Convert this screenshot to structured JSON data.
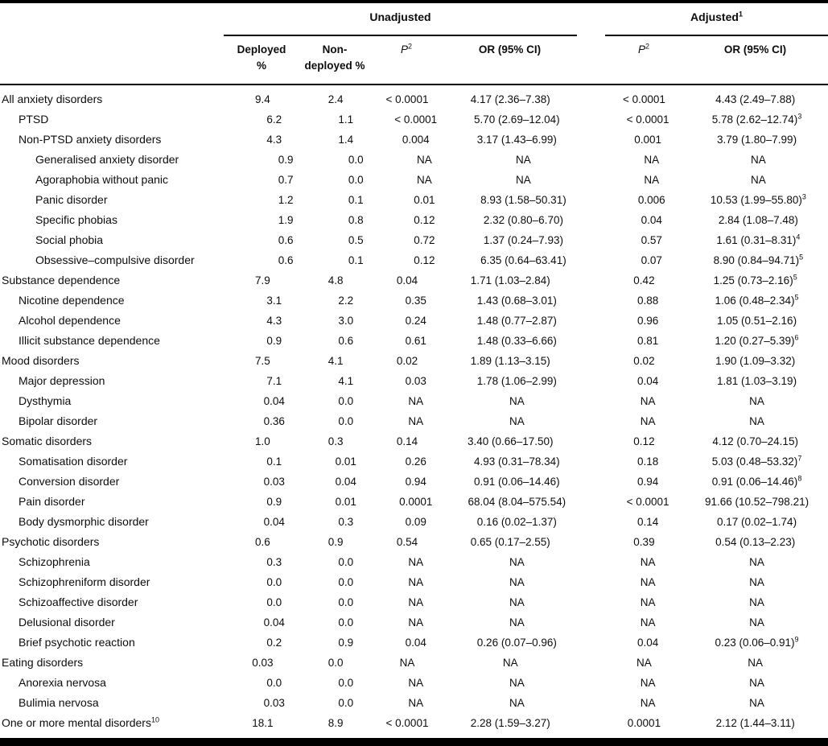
{
  "table": {
    "col_groups": {
      "unadjusted": "Unadjusted",
      "adjusted": "Adjusted",
      "adjusted_sup": "1"
    },
    "columns": {
      "deployed_line1": "Deployed",
      "deployed_line2": "%",
      "nondeployed_line1": "Non-",
      "nondeployed_line2": "deployed %",
      "p_label": "P",
      "p_sup": "2",
      "or_unadjusted_label": "OR (95% CI)",
      "or_adjusted_label": "OR (95% CI)"
    },
    "rows": [
      {
        "label": "All anxiety disorders",
        "indent": 0,
        "deployed": "9.4",
        "nondeployed": "2.4",
        "p_unadj": "< 0.0001",
        "or_unadj": "4.17 (2.36–7.38)",
        "p_adj": "< 0.0001",
        "or_adj": "4.43 (2.49–7.88)"
      },
      {
        "label": "PTSD",
        "indent": 1,
        "deployed": "6.2",
        "nondeployed": "1.1",
        "p_unadj": "< 0.0001",
        "or_unadj": "5.70 (2.69–12.04)",
        "p_adj": "< 0.0001",
        "or_adj": "5.78 (2.62–12.74)",
        "or_adj_sup": "3"
      },
      {
        "label": "Non-PTSD anxiety disorders",
        "indent": 1,
        "deployed": "4.3",
        "nondeployed": "1.4",
        "p_unadj": "0.004",
        "or_unadj": "3.17 (1.43–6.99)",
        "p_adj": "0.001",
        "or_adj": "3.79 (1.80–7.99)"
      },
      {
        "label": "Generalised anxiety disorder",
        "indent": 2,
        "deployed": "0.9",
        "nondeployed": "0.0",
        "p_unadj": "NA",
        "or_unadj": "NA",
        "p_adj": "NA",
        "or_adj": "NA"
      },
      {
        "label": "Agoraphobia without panic",
        "indent": 2,
        "deployed": "0.7",
        "nondeployed": "0.0",
        "p_unadj": "NA",
        "or_unadj": "NA",
        "p_adj": "NA",
        "or_adj": "NA"
      },
      {
        "label": "Panic disorder",
        "indent": 2,
        "deployed": "1.2",
        "nondeployed": "0.1",
        "p_unadj": "0.01",
        "or_unadj": "8.93 (1.58–50.31)",
        "p_adj": "0.006",
        "or_adj": "10.53 (1.99–55.80)",
        "or_adj_sup": "3"
      },
      {
        "label": "Specific phobias",
        "indent": 2,
        "deployed": "1.9",
        "nondeployed": "0.8",
        "p_unadj": "0.12",
        "or_unadj": "2.32 (0.80–6.70)",
        "p_adj": "0.04",
        "or_adj": "2.84 (1.08–7.48)"
      },
      {
        "label": "Social phobia",
        "indent": 2,
        "deployed": "0.6",
        "nondeployed": "0.5",
        "p_unadj": "0.72",
        "or_unadj": "1.37 (0.24–7.93)",
        "p_adj": "0.57",
        "or_adj": "1.61 (0.31–8.31)",
        "or_adj_sup": "4"
      },
      {
        "label": "Obsessive–compulsive disorder",
        "indent": 2,
        "deployed": "0.6",
        "nondeployed": "0.1",
        "p_unadj": "0.12",
        "or_unadj": "6.35 (0.64–63.41)",
        "p_adj": "0.07",
        "or_adj": "8.90 (0.84–94.71)",
        "or_adj_sup": "5"
      },
      {
        "label": "Substance dependence",
        "indent": 0,
        "deployed": "7.9",
        "nondeployed": "4.8",
        "p_unadj": "0.04",
        "or_unadj": "1.71 (1.03–2.84)",
        "p_adj": "0.42",
        "or_adj": "1.25 (0.73–2.16)",
        "or_adj_sup": "5"
      },
      {
        "label": "Nicotine dependence",
        "indent": 1,
        "deployed": "3.1",
        "nondeployed": "2.2",
        "p_unadj": "0.35",
        "or_unadj": "1.43 (0.68–3.01)",
        "p_adj": "0.88",
        "or_adj": "1.06 (0.48–2.34)",
        "or_adj_sup": "5"
      },
      {
        "label": "Alcohol dependence",
        "indent": 1,
        "deployed": "4.3",
        "nondeployed": "3.0",
        "p_unadj": "0.24",
        "or_unadj": "1.48 (0.77–2.87)",
        "p_adj": "0.96",
        "or_adj": "1.05 (0.51–2.16)"
      },
      {
        "label": "Illicit substance dependence",
        "indent": 1,
        "deployed": "0.9",
        "nondeployed": "0.6",
        "p_unadj": "0.61",
        "or_unadj": "1.48 (0.33–6.66)",
        "p_adj": "0.81",
        "or_adj": "1.20 (0.27–5.39)",
        "or_adj_sup": "6"
      },
      {
        "label": "Mood disorders",
        "indent": 0,
        "deployed": "7.5",
        "nondeployed": "4.1",
        "p_unadj": "0.02",
        "or_unadj": "1.89 (1.13–3.15)",
        "p_adj": "0.02",
        "or_adj": "1.90 (1.09–3.32)"
      },
      {
        "label": "Major depression",
        "indent": 1,
        "deployed": "7.1",
        "nondeployed": "4.1",
        "p_unadj": "0.03",
        "or_unadj": "1.78 (1.06–2.99)",
        "p_adj": "0.04",
        "or_adj": "1.81 (1.03–3.19)"
      },
      {
        "label": "Dysthymia",
        "indent": 1,
        "deployed": "0.04",
        "nondeployed": "0.0",
        "p_unadj": "NA",
        "or_unadj": "NA",
        "p_adj": "NA",
        "or_adj": "NA"
      },
      {
        "label": "Bipolar disorder",
        "indent": 1,
        "deployed": "0.36",
        "nondeployed": "0.0",
        "p_unadj": "NA",
        "or_unadj": "NA",
        "p_adj": "NA",
        "or_adj": "NA"
      },
      {
        "label": "Somatic disorders",
        "indent": 0,
        "deployed": "1.0",
        "nondeployed": "0.3",
        "p_unadj": "0.14",
        "or_unadj": "3.40 (0.66–17.50)",
        "p_adj": "0.12",
        "or_adj": "4.12 (0.70–24.15)"
      },
      {
        "label": "Somatisation disorder",
        "indent": 1,
        "deployed": "0.1",
        "nondeployed": "0.01",
        "p_unadj": "0.26",
        "or_unadj": "4.93 (0.31–78.34)",
        "p_adj": "0.18",
        "or_adj": "5.03 (0.48–53.32)",
        "or_adj_sup": "7"
      },
      {
        "label": "Conversion disorder",
        "indent": 1,
        "deployed": "0.03",
        "nondeployed": "0.04",
        "p_unadj": "0.94",
        "or_unadj": "0.91 (0.06–14.46)",
        "p_adj": "0.94",
        "or_adj": "0.91 (0.06–14.46)",
        "or_adj_sup": "8"
      },
      {
        "label": "Pain disorder",
        "indent": 1,
        "deployed": "0.9",
        "nondeployed": "0.01",
        "p_unadj": "0.0001",
        "or_unadj": "68.04 (8.04–575.54)",
        "p_adj": "< 0.0001",
        "or_adj": "91.66 (10.52–798.21)"
      },
      {
        "label": "Body dysmorphic disorder",
        "indent": 1,
        "deployed": "0.04",
        "nondeployed": "0.3",
        "p_unadj": "0.09",
        "or_unadj": "0.16 (0.02–1.37)",
        "p_adj": "0.14",
        "or_adj": "0.17 (0.02–1.74)"
      },
      {
        "label": "Psychotic disorders",
        "indent": 0,
        "deployed": "0.6",
        "nondeployed": "0.9",
        "p_unadj": "0.54",
        "or_unadj": "0.65 (0.17–2.55)",
        "p_adj": "0.39",
        "or_adj": "0.54 (0.13–2.23)"
      },
      {
        "label": "Schizophrenia",
        "indent": 1,
        "deployed": "0.3",
        "nondeployed": "0.0",
        "p_unadj": "NA",
        "or_unadj": "NA",
        "p_adj": "NA",
        "or_adj": "NA"
      },
      {
        "label": "Schizophreniform disorder",
        "indent": 1,
        "deployed": "0.0",
        "nondeployed": "0.0",
        "p_unadj": "NA",
        "or_unadj": "NA",
        "p_adj": "NA",
        "or_adj": "NA"
      },
      {
        "label": "Schizoaffective disorder",
        "indent": 1,
        "deployed": "0.0",
        "nondeployed": "0.0",
        "p_unadj": "NA",
        "or_unadj": "NA",
        "p_adj": "NA",
        "or_adj": "NA"
      },
      {
        "label": "Delusional disorder",
        "indent": 1,
        "deployed": "0.04",
        "nondeployed": "0.0",
        "p_unadj": "NA",
        "or_unadj": "NA",
        "p_adj": "NA",
        "or_adj": "NA"
      },
      {
        "label": "Brief psychotic reaction",
        "indent": 1,
        "deployed": "0.2",
        "nondeployed": "0.9",
        "p_unadj": "0.04",
        "or_unadj": "0.26 (0.07–0.96)",
        "p_adj": "0.04",
        "or_adj": "0.23 (0.06–0.91)",
        "or_adj_sup": "9"
      },
      {
        "label": "Eating disorders",
        "indent": 0,
        "deployed": "0.03",
        "nondeployed": "0.0",
        "p_unadj": "NA",
        "or_unadj": "NA",
        "p_adj": "NA",
        "or_adj": "NA"
      },
      {
        "label": "Anorexia nervosa",
        "indent": 1,
        "deployed": "0.0",
        "nondeployed": "0.0",
        "p_unadj": "NA",
        "or_unadj": "NA",
        "p_adj": "NA",
        "or_adj": "NA"
      },
      {
        "label": "Bulimia nervosa",
        "indent": 1,
        "deployed": "0.03",
        "nondeployed": "0.0",
        "p_unadj": "NA",
        "or_unadj": "NA",
        "p_adj": "NA",
        "or_adj": "NA"
      },
      {
        "label": "One or more mental disorders",
        "label_sup": "10",
        "indent": 0,
        "deployed": "18.1",
        "nondeployed": "8.9",
        "p_unadj": "< 0.0001",
        "or_unadj": "2.28 (1.59–3.27)",
        "p_adj": "0.0001",
        "or_adj": "2.12 (1.44–3.11)"
      }
    ]
  }
}
